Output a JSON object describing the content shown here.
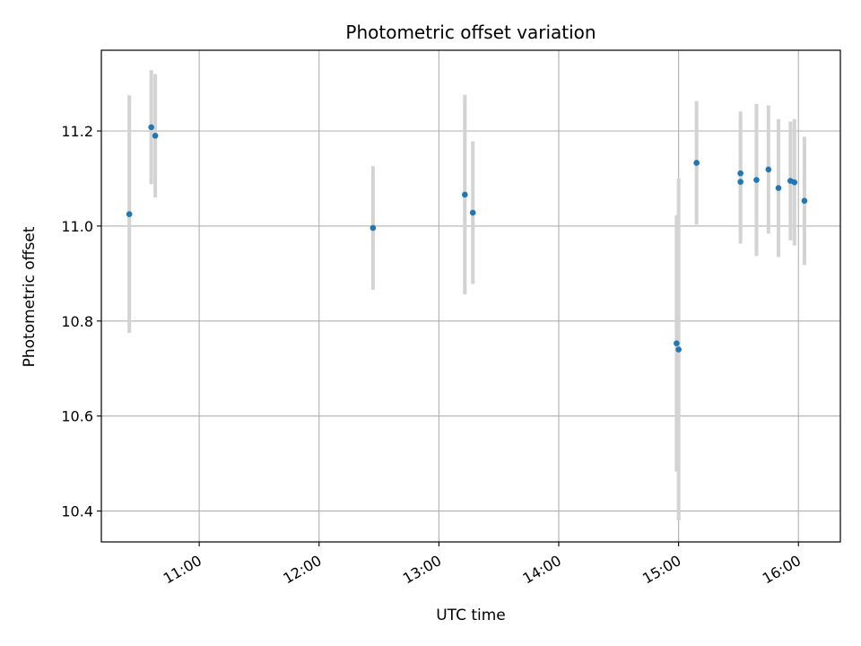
{
  "chart_data": {
    "type": "scatter",
    "title": "Photometric offset variation",
    "xlabel": "UTC time",
    "ylabel": "Photometric offset",
    "xlim": [
      "10:11",
      "16:21"
    ],
    "ylim": [
      10.335,
      11.37
    ],
    "grid": true,
    "x_ticks": [
      "11:00",
      "12:00",
      "13:00",
      "14:00",
      "15:00",
      "16:00"
    ],
    "y_ticks": [
      10.4,
      10.6,
      10.8,
      11.0,
      11.2
    ],
    "y_tick_labels": [
      "10.4",
      "10.6",
      "10.8",
      "11.0",
      "11.2"
    ],
    "marker_color": "#1f77b4",
    "errorbar_color": "#d3d3d3",
    "points": [
      {
        "t": "10:25",
        "y": 11.025,
        "err": 0.25
      },
      {
        "t": "10:36",
        "y": 11.208,
        "err": 0.12
      },
      {
        "t": "10:38",
        "y": 11.19,
        "err": 0.13
      },
      {
        "t": "12:27",
        "y": 10.996,
        "err": 0.13
      },
      {
        "t": "13:13",
        "y": 11.066,
        "err": 0.21
      },
      {
        "t": "13:17",
        "y": 11.028,
        "err": 0.15
      },
      {
        "t": "14:59",
        "y": 10.753,
        "err": 0.27
      },
      {
        "t": "15:00",
        "y": 10.74,
        "err": 0.36
      },
      {
        "t": "15:09",
        "y": 11.133,
        "err": 0.13
      },
      {
        "t": "15:31",
        "y": 11.111,
        "err": 0.13
      },
      {
        "t": "15:31",
        "y": 11.093,
        "err": 0.13
      },
      {
        "t": "15:39",
        "y": 11.097,
        "err": 0.16
      },
      {
        "t": "15:45",
        "y": 11.119,
        "err": 0.135
      },
      {
        "t": "15:50",
        "y": 11.08,
        "err": 0.145
      },
      {
        "t": "15:56",
        "y": 11.095,
        "err": 0.125
      },
      {
        "t": "15:58",
        "y": 11.092,
        "err": 0.133
      },
      {
        "t": "16:03",
        "y": 11.053,
        "err": 0.135
      }
    ]
  }
}
